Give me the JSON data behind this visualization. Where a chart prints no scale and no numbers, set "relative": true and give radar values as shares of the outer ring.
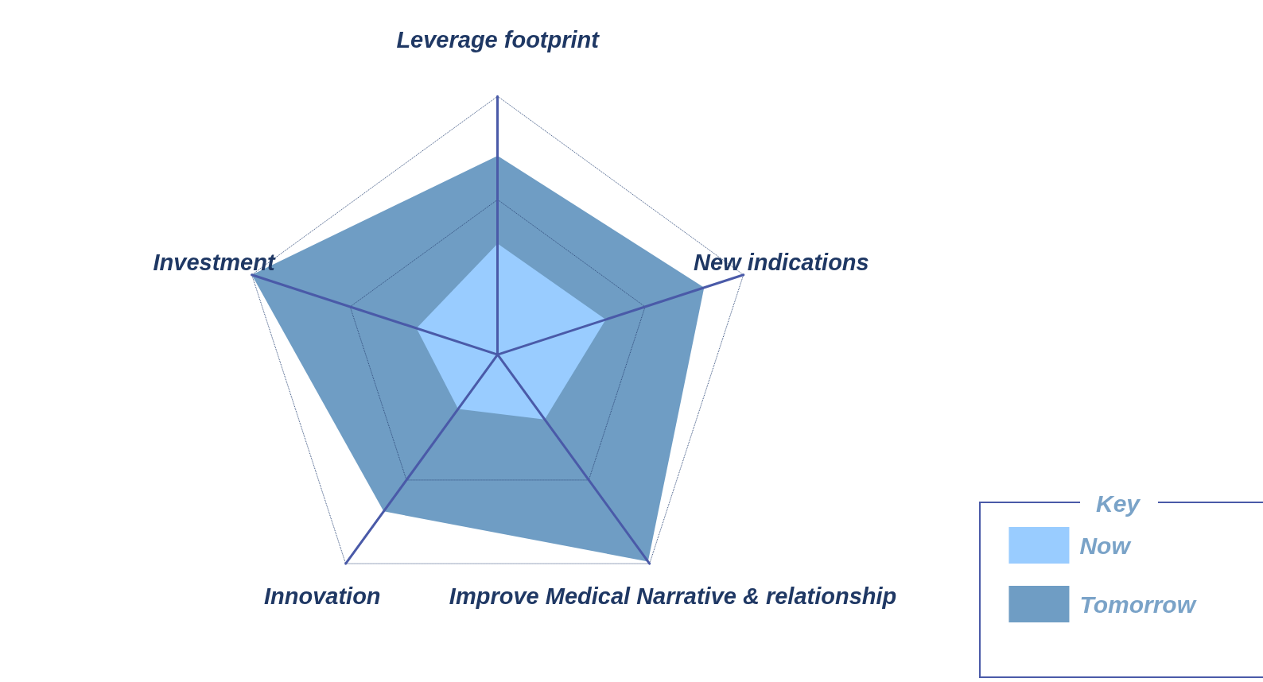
{
  "chart_data": {
    "type": "radar",
    "relative": true,
    "legend": "bottom right",
    "legend_title": "Key",
    "categories": [
      "Leverage footprint",
      "New indications",
      "Improve Medical Narrative & relationship",
      "Innovation",
      "Investment"
    ],
    "series": [
      {
        "name": "Now",
        "color": "#99ccff",
        "values": [
          0.43,
          0.44,
          0.31,
          0.26,
          0.33
        ]
      },
      {
        "name": "Tomorrow",
        "color": "#6f9dc4",
        "values": [
          0.77,
          0.84,
          0.99,
          0.75,
          1.0
        ]
      }
    ]
  }
}
